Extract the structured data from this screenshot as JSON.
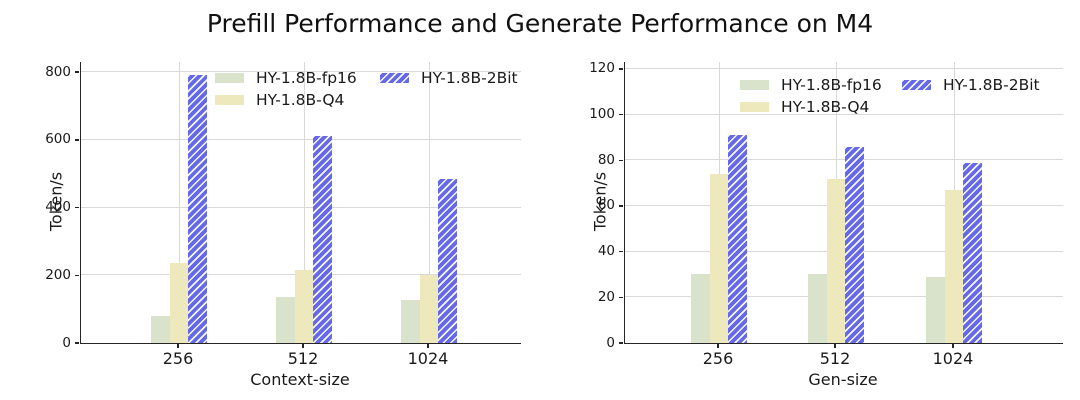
{
  "title": "Prefill Performance and Generate Performance on M4",
  "colors": {
    "fp16": "#d9e2cb",
    "q4": "#eee8bd",
    "2bit": "#6568e8",
    "hatch": "#ffffff",
    "grid": "#d9d9d9",
    "spine": "#262626",
    "text": "#1a1a1a"
  },
  "legend_labels": [
    "HY-1.8B-fp16",
    "HY-1.8B-Q4",
    "HY-1.8B-2Bit"
  ],
  "chart_data": [
    {
      "type": "bar",
      "name": "prefill",
      "xlabel": "Context-size",
      "ylabel": "Token/s",
      "categories": [
        "256",
        "512",
        "1024"
      ],
      "yticks": [
        0,
        200,
        400,
        600,
        800
      ],
      "ylim": [
        0,
        830
      ],
      "grid": true,
      "legend_position": "upper center, no frame, 2 columns",
      "series": [
        {
          "name": "HY-1.8B-fp16",
          "color_key": "fp16",
          "hatched": false,
          "values": [
            80,
            135,
            128
          ]
        },
        {
          "name": "HY-1.8B-Q4",
          "color_key": "q4",
          "hatched": false,
          "values": [
            235,
            215,
            200
          ]
        },
        {
          "name": "HY-1.8B-2Bit",
          "color_key": "2bit",
          "hatched": true,
          "values": [
            793,
            610,
            483
          ]
        }
      ]
    },
    {
      "type": "bar",
      "name": "generate",
      "xlabel": "Gen-size",
      "ylabel": "Token/s",
      "categories": [
        "256",
        "512",
        "1024"
      ],
      "yticks": [
        0,
        20,
        40,
        60,
        80,
        100,
        120
      ],
      "ylim": [
        0,
        123
      ],
      "grid": true,
      "legend_position": "upper center, no frame, 2 columns",
      "series": [
        {
          "name": "HY-1.8B-fp16",
          "color_key": "fp16",
          "hatched": false,
          "values": [
            30,
            30,
            29
          ]
        },
        {
          "name": "HY-1.8B-Q4",
          "color_key": "q4",
          "hatched": false,
          "values": [
            74,
            72,
            67
          ]
        },
        {
          "name": "HY-1.8B-2Bit",
          "color_key": "2bit",
          "hatched": true,
          "values": [
            91,
            86,
            79
          ]
        }
      ]
    }
  ]
}
